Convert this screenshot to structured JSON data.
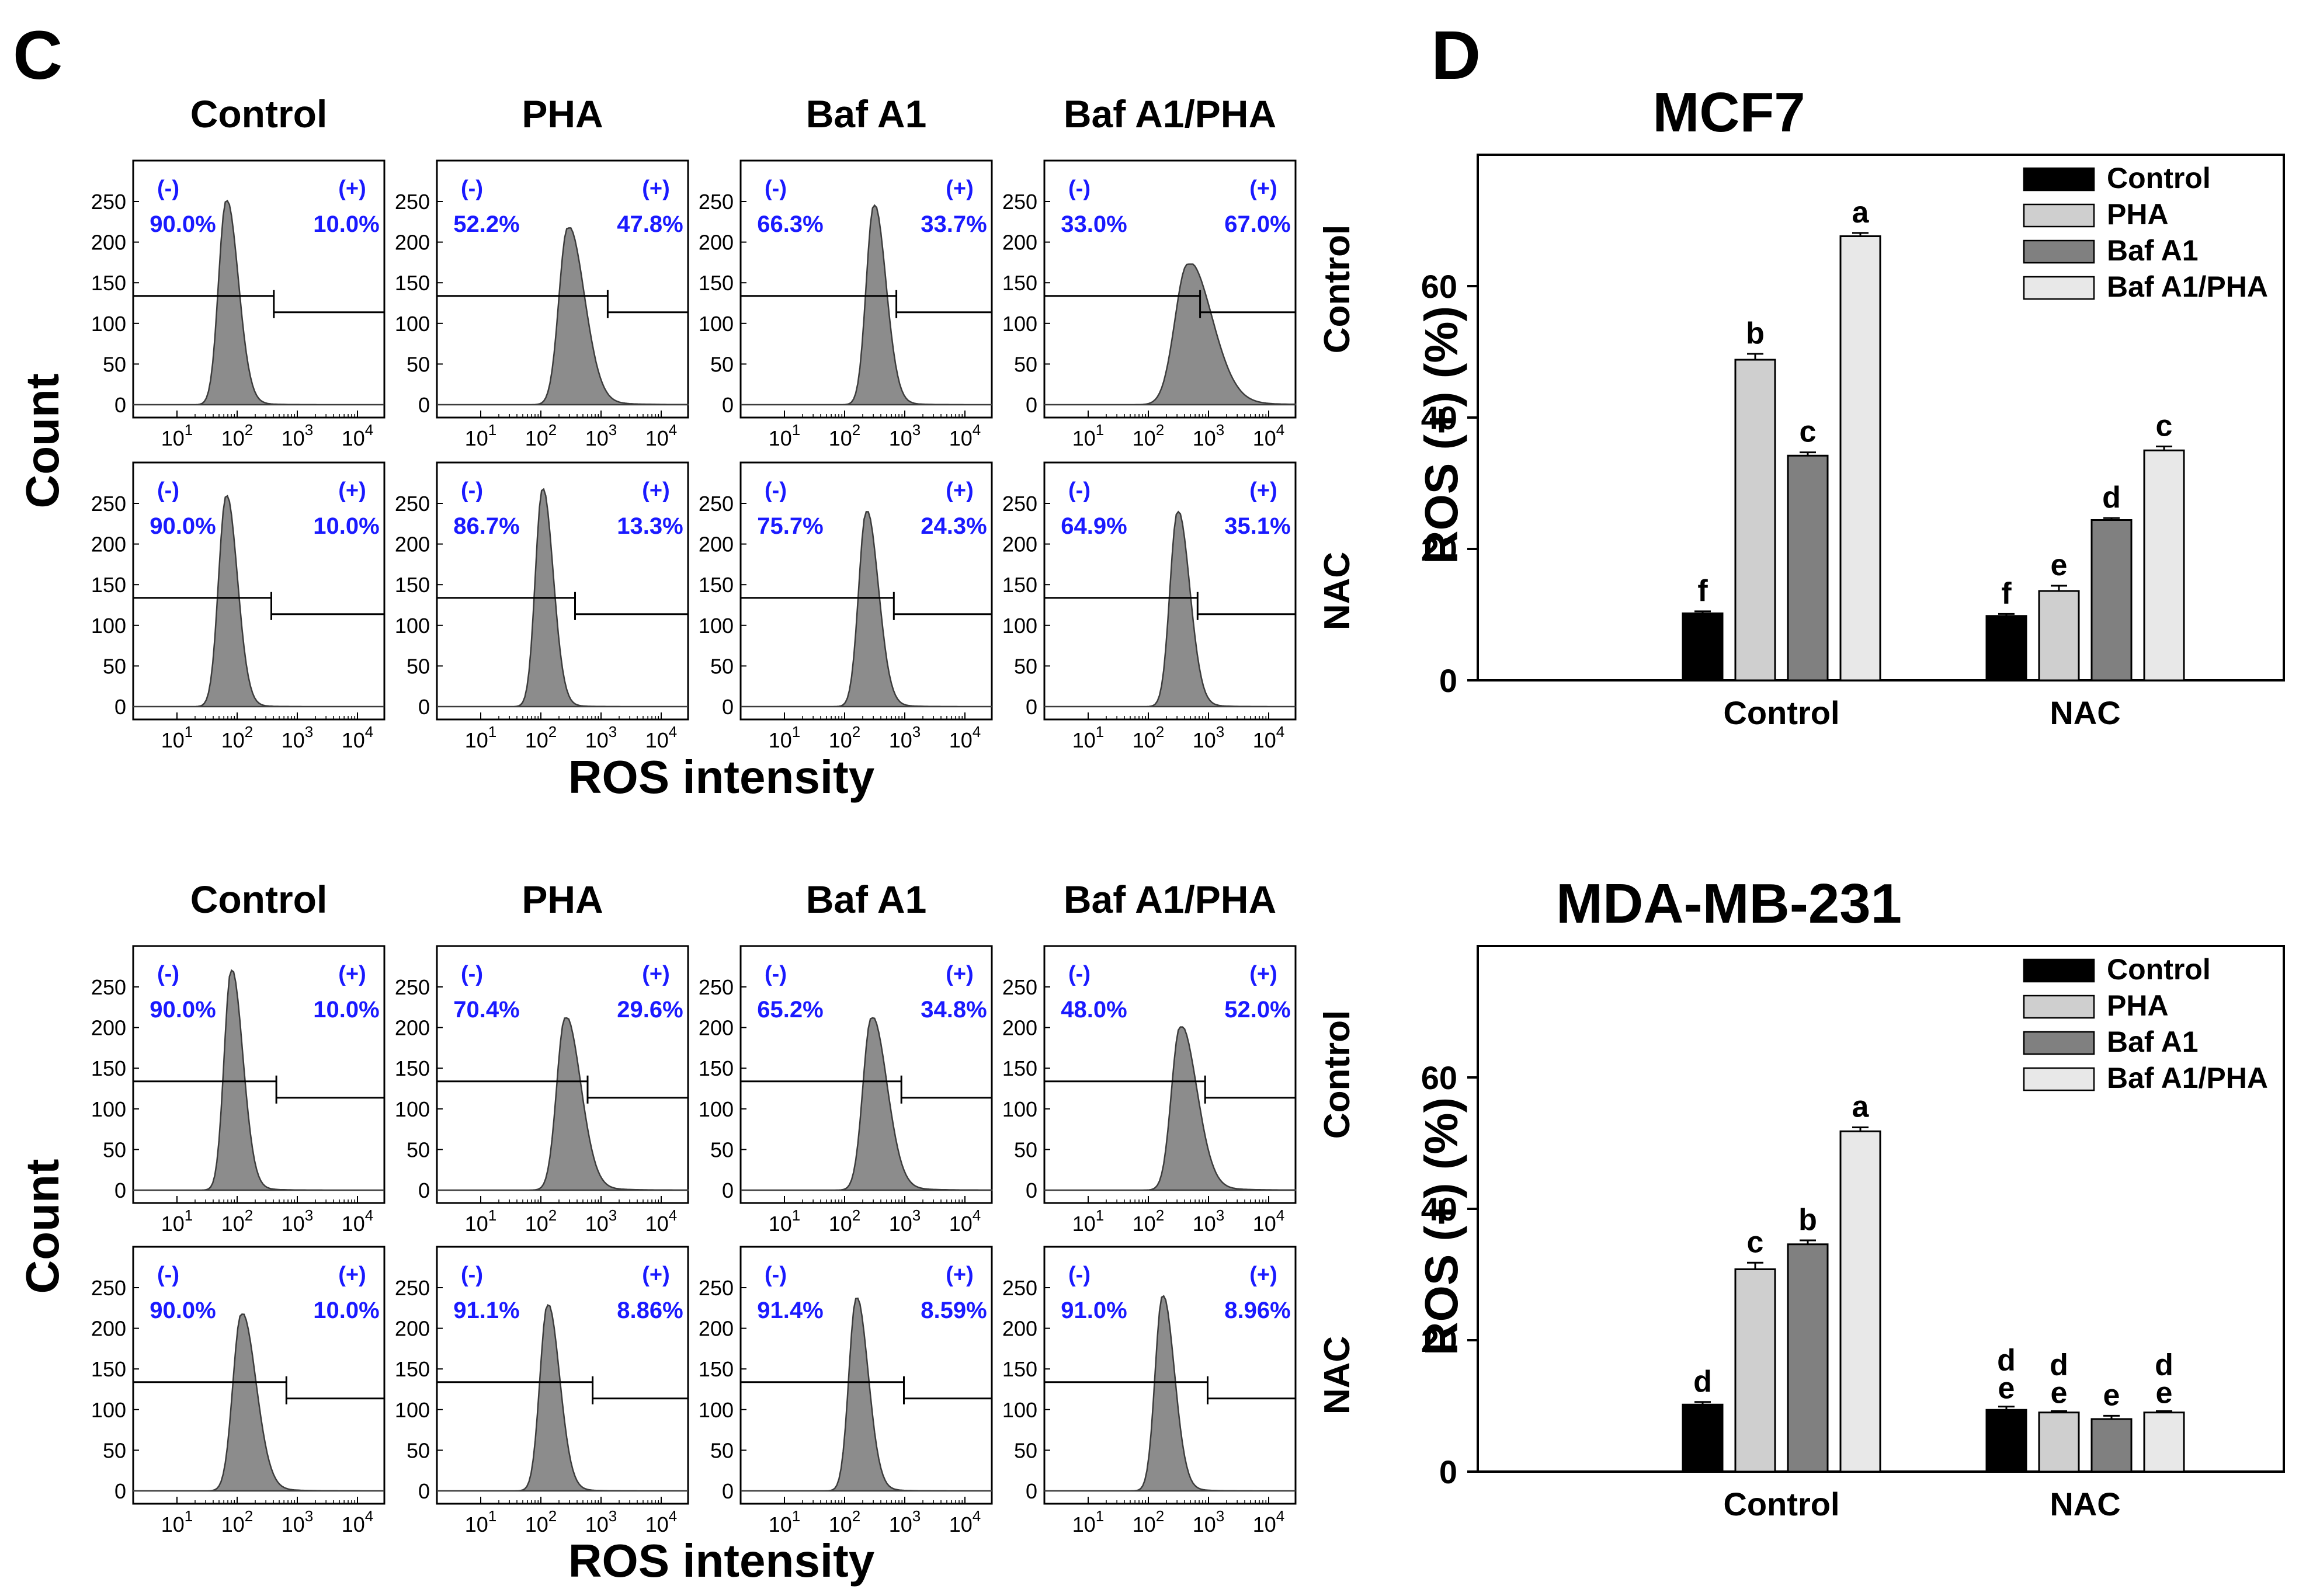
{
  "panel_c": {
    "letter": "C",
    "col_headers": [
      "Control",
      "PHA",
      "Baf A1",
      "Baf A1/PHA"
    ],
    "row_labels": [
      "Control",
      "NAC"
    ],
    "ylabel": "Count",
    "xlabel": "ROS intensity",
    "y_ticks": [
      "0",
      "50",
      "100",
      "150",
      "200",
      "250"
    ],
    "x_ticks": [
      {
        "base": "10",
        "exp": "1"
      },
      {
        "base": "10",
        "exp": "2"
      },
      {
        "base": "10",
        "exp": "3"
      },
      {
        "base": "10",
        "exp": "4"
      }
    ],
    "neg_label": "(-)",
    "pos_label": "(+)",
    "top_block_percent": [
      [
        [
          "90.0%",
          "10.0%"
        ],
        [
          "52.2%",
          "47.8%"
        ],
        [
          "66.3%",
          "33.7%"
        ],
        [
          "33.0%",
          "67.0%"
        ]
      ],
      [
        [
          "90.0%",
          "10.0%"
        ],
        [
          "86.7%",
          "13.3%"
        ],
        [
          "75.7%",
          "24.3%"
        ],
        [
          "64.9%",
          "35.1%"
        ]
      ]
    ],
    "bottom_block_percent": [
      [
        [
          "90.0%",
          "10.0%"
        ],
        [
          "70.4%",
          "29.6%"
        ],
        [
          "65.2%",
          "34.8%"
        ],
        [
          "48.0%",
          "52.0%"
        ]
      ],
      [
        [
          "90.0%",
          "10.0%"
        ],
        [
          "91.1%",
          "8.86%"
        ],
        [
          "91.4%",
          "8.59%"
        ],
        [
          "91.0%",
          "8.96%"
        ]
      ]
    ]
  },
  "panel_d": {
    "letter": "D",
    "colors": {
      "Control": "#000000",
      "PHA": "#cfcfcf",
      "Baf A1": "#808080",
      "Baf A1/PHA": "#e8e8e8"
    }
  },
  "chart_data": [
    {
      "type": "bar",
      "title": "MCF7",
      "ylabel": "ROS (+) (%)",
      "xlabel": "",
      "ylim": [
        0,
        80
      ],
      "y_ticks": [
        0,
        20,
        40,
        60
      ],
      "legend_position": "top-right",
      "categories": [
        "Control",
        "NAC"
      ],
      "series": [
        {
          "name": "Control",
          "values": [
            10.2,
            9.8
          ],
          "errors": [
            0.3,
            0.3
          ],
          "letters": [
            "f",
            "f"
          ]
        },
        {
          "name": "PHA",
          "values": [
            48.8,
            13.6
          ],
          "errors": [
            0.9,
            0.8
          ],
          "letters": [
            "b",
            "e"
          ]
        },
        {
          "name": "Baf A1",
          "values": [
            34.2,
            24.4
          ],
          "errors": [
            0.5,
            0.3
          ],
          "letters": [
            "c",
            "d"
          ]
        },
        {
          "name": "Baf A1/PHA",
          "values": [
            67.6,
            35.0
          ],
          "errors": [
            0.5,
            0.6
          ],
          "letters": [
            "a",
            "c"
          ]
        }
      ]
    },
    {
      "type": "bar",
      "title": "MDA-MB-231",
      "ylabel": "ROS (+) (%)",
      "xlabel": "",
      "ylim": [
        0,
        80
      ],
      "y_ticks": [
        0,
        20,
        40,
        60
      ],
      "legend_position": "top-right",
      "categories": [
        "Control",
        "NAC"
      ],
      "series": [
        {
          "name": "Control",
          "values": [
            10.2,
            9.4
          ],
          "errors": [
            0.4,
            0.5
          ],
          "letters": [
            "d",
            "de"
          ]
        },
        {
          "name": "PHA",
          "values": [
            30.8,
            9.0
          ],
          "errors": [
            1.0,
            0.2
          ],
          "letters": [
            "c",
            "de"
          ]
        },
        {
          "name": "Baf A1",
          "values": [
            34.6,
            8.0
          ],
          "errors": [
            0.6,
            0.5
          ],
          "letters": [
            "b",
            "e"
          ]
        },
        {
          "name": "Baf A1/PHA",
          "values": [
            51.8,
            9.0
          ],
          "errors": [
            0.6,
            0.2
          ],
          "letters": [
            "a",
            "de"
          ]
        }
      ]
    }
  ]
}
